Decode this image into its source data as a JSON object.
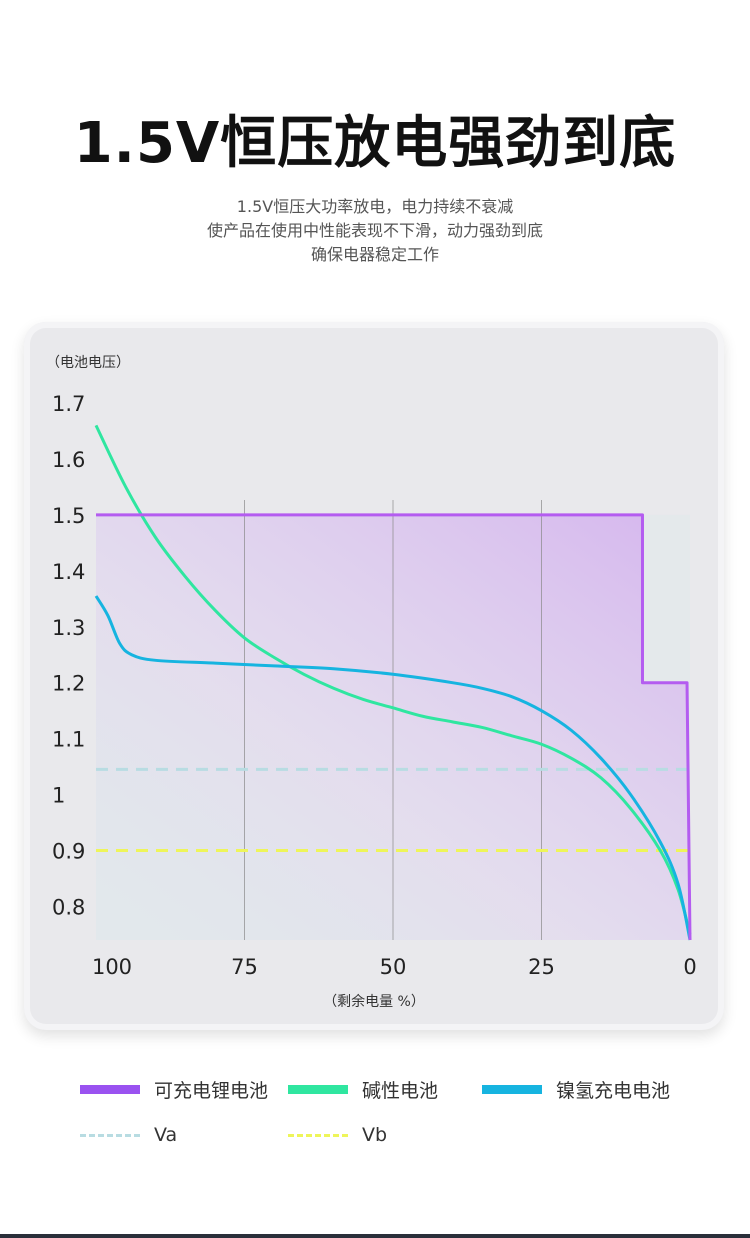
{
  "header": {
    "title": "1.5V恒压放电强劲到底",
    "subtitle_lines": [
      "1.5V恒压大功率放电，电力持续不衰减",
      "使产品在使用中性能表现不下滑，动力强劲到底",
      "确保电器稳定工作"
    ]
  },
  "chart_data": {
    "type": "line",
    "ylabel": "（电池电压）",
    "xlabel": "（剩余电量 %）",
    "x_ticks": [
      100,
      75,
      50,
      25,
      0
    ],
    "y_ticks": [
      "1.7",
      "1.6",
      "1.5",
      "1.4",
      "1.3",
      "1.2",
      "1.1",
      "1",
      "0.9",
      "0.8"
    ],
    "xlim": [
      100,
      0
    ],
    "ylim": [
      0.74,
      1.71
    ],
    "grid": "vertical",
    "legend_position": "bottom",
    "series": [
      {
        "name": "可充电锂电池",
        "color": "#b45cf0",
        "style": "solid",
        "points": [
          [
            100,
            1.5
          ],
          [
            8,
            1.5
          ],
          [
            8,
            1.2
          ],
          [
            0.5,
            1.2
          ],
          [
            0,
            0.74
          ]
        ]
      },
      {
        "name": "碱性电池",
        "color": "#2fe6a0",
        "style": "solid",
        "points": [
          [
            100,
            1.66
          ],
          [
            95,
            1.55
          ],
          [
            90,
            1.46
          ],
          [
            85,
            1.39
          ],
          [
            80,
            1.33
          ],
          [
            75,
            1.28
          ],
          [
            70,
            1.245
          ],
          [
            65,
            1.215
          ],
          [
            60,
            1.19
          ],
          [
            55,
            1.17
          ],
          [
            50,
            1.155
          ],
          [
            45,
            1.14
          ],
          [
            40,
            1.13
          ],
          [
            35,
            1.12
          ],
          [
            30,
            1.105
          ],
          [
            25,
            1.09
          ],
          [
            20,
            1.065
          ],
          [
            15,
            1.03
          ],
          [
            10,
            0.975
          ],
          [
            5,
            0.9
          ],
          [
            2,
            0.83
          ],
          [
            0,
            0.75
          ]
        ]
      },
      {
        "name": "镍氢充电电池",
        "color": "#16b4e0",
        "style": "solid",
        "points": [
          [
            100,
            1.355
          ],
          [
            98,
            1.32
          ],
          [
            96,
            1.27
          ],
          [
            94,
            1.25
          ],
          [
            90,
            1.24
          ],
          [
            80,
            1.235
          ],
          [
            70,
            1.23
          ],
          [
            60,
            1.225
          ],
          [
            50,
            1.215
          ],
          [
            40,
            1.2
          ],
          [
            35,
            1.19
          ],
          [
            30,
            1.175
          ],
          [
            25,
            1.15
          ],
          [
            20,
            1.115
          ],
          [
            15,
            1.065
          ],
          [
            10,
            1.0
          ],
          [
            5,
            0.915
          ],
          [
            2,
            0.84
          ],
          [
            0,
            0.74
          ]
        ]
      },
      {
        "name": "Va",
        "color": "#b8dce2",
        "style": "dashed",
        "points": [
          [
            100,
            1.045
          ],
          [
            0,
            1.045
          ]
        ]
      },
      {
        "name": "Vb",
        "color": "#eef55a",
        "style": "dashed",
        "points": [
          [
            100,
            0.9
          ],
          [
            0,
            0.9
          ]
        ]
      }
    ]
  }
}
